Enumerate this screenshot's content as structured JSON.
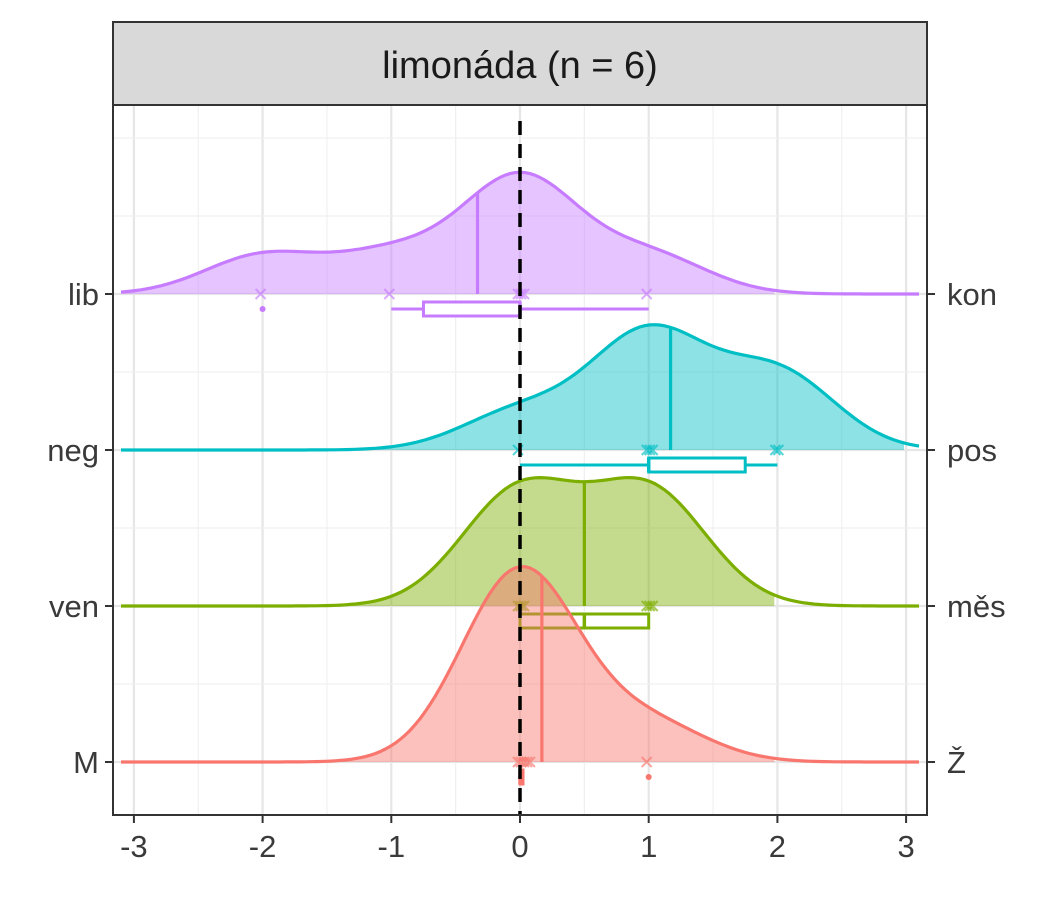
{
  "chart_data": {
    "type": "ridgeline-density",
    "title": "limonáda (n = 6)",
    "xlabel": "",
    "ylabel": "",
    "xlim": [
      -3.1,
      3.1
    ],
    "x_ticks": [
      -3,
      -2,
      -1,
      0,
      1,
      2,
      3
    ],
    "x_tick_labels": [
      "-3",
      "-2",
      "-1",
      "0",
      "1",
      "2",
      "3"
    ],
    "reference_line_x": 0,
    "grid": true,
    "legend": "none",
    "series": [
      {
        "name": "M-Ž",
        "left_label": "M",
        "right_label": "Ž",
        "color": "#F8766D",
        "values": [
          0,
          0,
          0,
          0,
          0,
          1
        ],
        "mean": 0.17,
        "box": {
          "min": 0,
          "q1": 0,
          "median": 0,
          "q3": 0,
          "max": 0,
          "outliers": [
            1
          ]
        }
      },
      {
        "name": "ven-měs",
        "left_label": "ven",
        "right_label": "měs",
        "color": "#7CAE00",
        "values": [
          0,
          0,
          0,
          1,
          1,
          1
        ],
        "mean": 0.5,
        "box": {
          "min": 0,
          "q1": 0,
          "median": 0.5,
          "q3": 1,
          "max": 1,
          "outliers": []
        }
      },
      {
        "name": "neg-pos",
        "left_label": "neg",
        "right_label": "pos",
        "color": "#00BFC4",
        "values": [
          0,
          1,
          1,
          1,
          2,
          2
        ],
        "mean": 1.17,
        "box": {
          "min": 0,
          "q1": 1,
          "median": 1,
          "q3": 1.75,
          "max": 2,
          "outliers": []
        }
      },
      {
        "name": "lib-kon",
        "left_label": "lib",
        "right_label": "kon",
        "color": "#C77CFF",
        "values": [
          -2,
          -1,
          0,
          0,
          0,
          1
        ],
        "mean": -0.33,
        "box": {
          "min": -1,
          "q1": -0.75,
          "median": 0,
          "q3": 0,
          "max": 1,
          "outliers": [
            -2
          ]
        }
      }
    ]
  }
}
